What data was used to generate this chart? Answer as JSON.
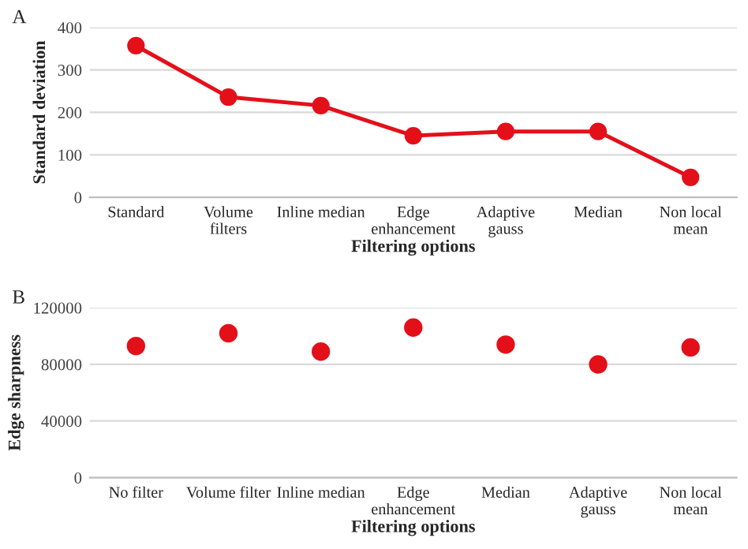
{
  "chart_data": [
    {
      "type": "line",
      "title": "A",
      "xlabel": "Filtering options",
      "ylabel": "Standard deviation",
      "categories": [
        "Standard",
        "Volume\nfilters",
        "Inline median",
        "Edge\nenhancement",
        "Adaptive\ngauss",
        "Median",
        "Non local\nmean"
      ],
      "series": [
        {
          "color": "#e3101a",
          "values": [
            357,
            236,
            216,
            145,
            155,
            155,
            47
          ]
        }
      ],
      "ylim": [
        0,
        400
      ],
      "yticks": [
        0,
        100,
        200,
        300,
        400
      ],
      "grid": "y",
      "marker": "circle",
      "line_style": "solid",
      "legend": false
    },
    {
      "type": "scatter",
      "title": "B",
      "xlabel": "Filtering options",
      "ylabel": "Edge sharpness",
      "categories": [
        "No filter",
        "Volume filter",
        "Inline median",
        "Edge\nenhancement",
        "Median",
        "Adaptive\ngauss",
        "Non local\nmean"
      ],
      "series": [
        {
          "color": "#e3101a",
          "values": [
            93000,
            102000,
            89000,
            106000,
            94000,
            80000,
            92000
          ]
        }
      ],
      "ylim": [
        0,
        120000
      ],
      "yticks": [
        0,
        40000,
        80000,
        120000
      ],
      "grid": "y",
      "marker": "circle",
      "legend": false
    }
  ]
}
